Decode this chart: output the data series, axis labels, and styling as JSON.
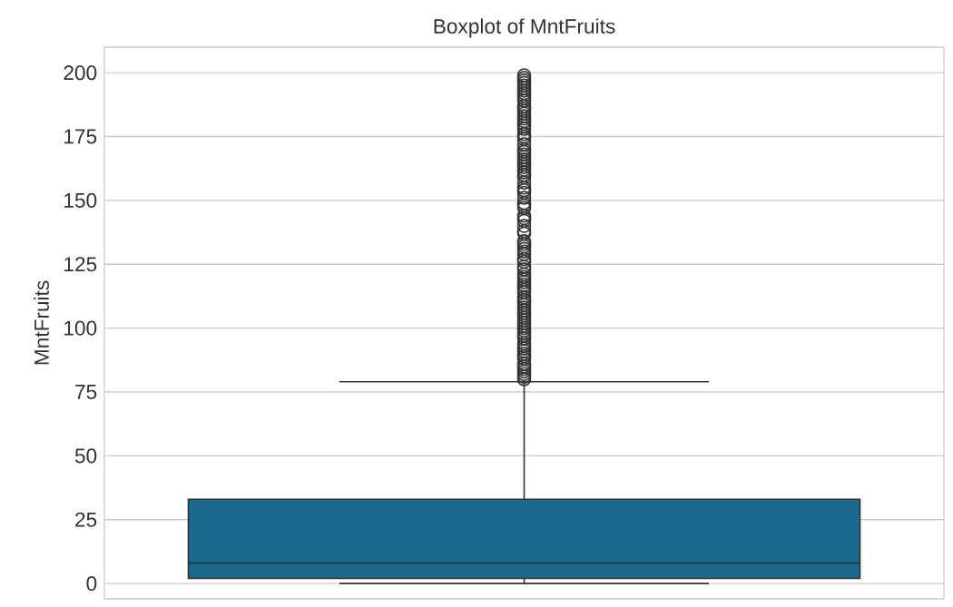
{
  "chart_data": {
    "type": "box",
    "title": "Boxplot of MntFruits",
    "ylabel": "MntFruits",
    "categories": [
      null
    ],
    "color": "#1a6a8e",
    "boxes": [
      {
        "low": 0,
        "q1": 2,
        "median": 8,
        "q3": 33,
        "high": 79,
        "outliers": [
          80,
          81,
          82,
          83,
          84,
          85,
          86,
          88,
          89,
          90,
          91,
          92,
          93,
          94,
          96,
          97,
          98,
          99,
          100,
          101,
          102,
          103,
          104,
          105,
          106,
          107,
          108,
          109,
          110,
          111,
          112,
          114,
          115,
          116,
          117,
          118,
          119,
          120,
          121,
          123,
          124,
          126,
          127,
          129,
          130,
          131,
          132,
          133,
          134,
          137,
          138,
          140,
          142,
          143,
          144,
          147,
          148,
          149,
          151,
          153,
          154,
          155,
          157,
          159,
          160,
          161,
          162,
          163,
          164,
          165,
          166,
          167,
          168,
          169,
          170,
          172,
          174,
          175,
          176,
          178,
          179,
          180,
          181,
          182,
          183,
          184,
          185,
          186,
          187,
          189,
          190,
          191,
          192,
          193,
          194,
          195,
          196,
          197,
          198,
          199
        ]
      }
    ],
    "ylim": [
      -6,
      210
    ],
    "yticks": [
      0,
      25,
      50,
      75,
      100,
      125,
      150,
      175,
      200
    ],
    "grid": "y",
    "marker": "circle"
  }
}
